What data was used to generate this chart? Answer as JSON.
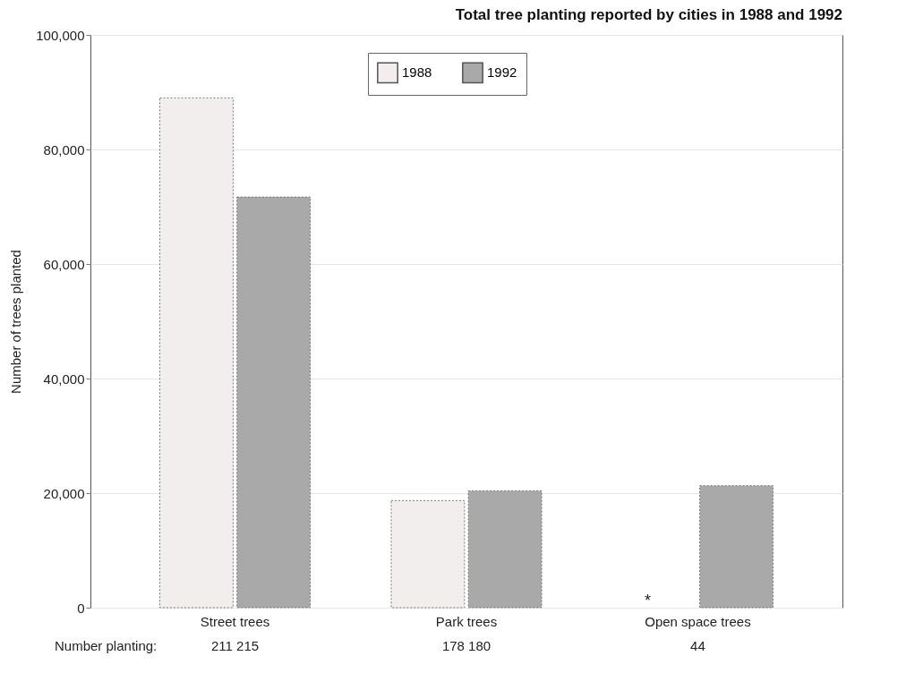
{
  "chart_data": {
    "type": "bar",
    "title": "Total tree planting reported by cities in 1988 and 1992",
    "ylabel": "Number of trees planted",
    "categories": [
      "Street trees",
      "Park trees",
      "Open space trees"
    ],
    "series": [
      {
        "name": "1988",
        "color": "#f2eeee",
        "values": [
          89000,
          18700,
          null
        ]
      },
      {
        "name": "1992",
        "color": "#a9a9a9",
        "values": [
          71700,
          20400,
          21300
        ]
      }
    ],
    "ylim": [
      0,
      100000
    ],
    "yticks": [
      0,
      {
        "value": 20000,
        "label": "20,000"
      },
      {
        "value": 40000,
        "label": "40,000"
      },
      {
        "value": 60000,
        "label": "60,000"
      },
      {
        "value": 80000,
        "label": "80,000"
      },
      {
        "value": 100000,
        "label": "100,000"
      }
    ],
    "grid": "y",
    "legend": "top",
    "annotations": [
      "Number planting:",
      "211   215",
      "178   180",
      "44",
      {
        "text": "*",
        "x": "Open space trees",
        "y": 0
      }
    ]
  }
}
